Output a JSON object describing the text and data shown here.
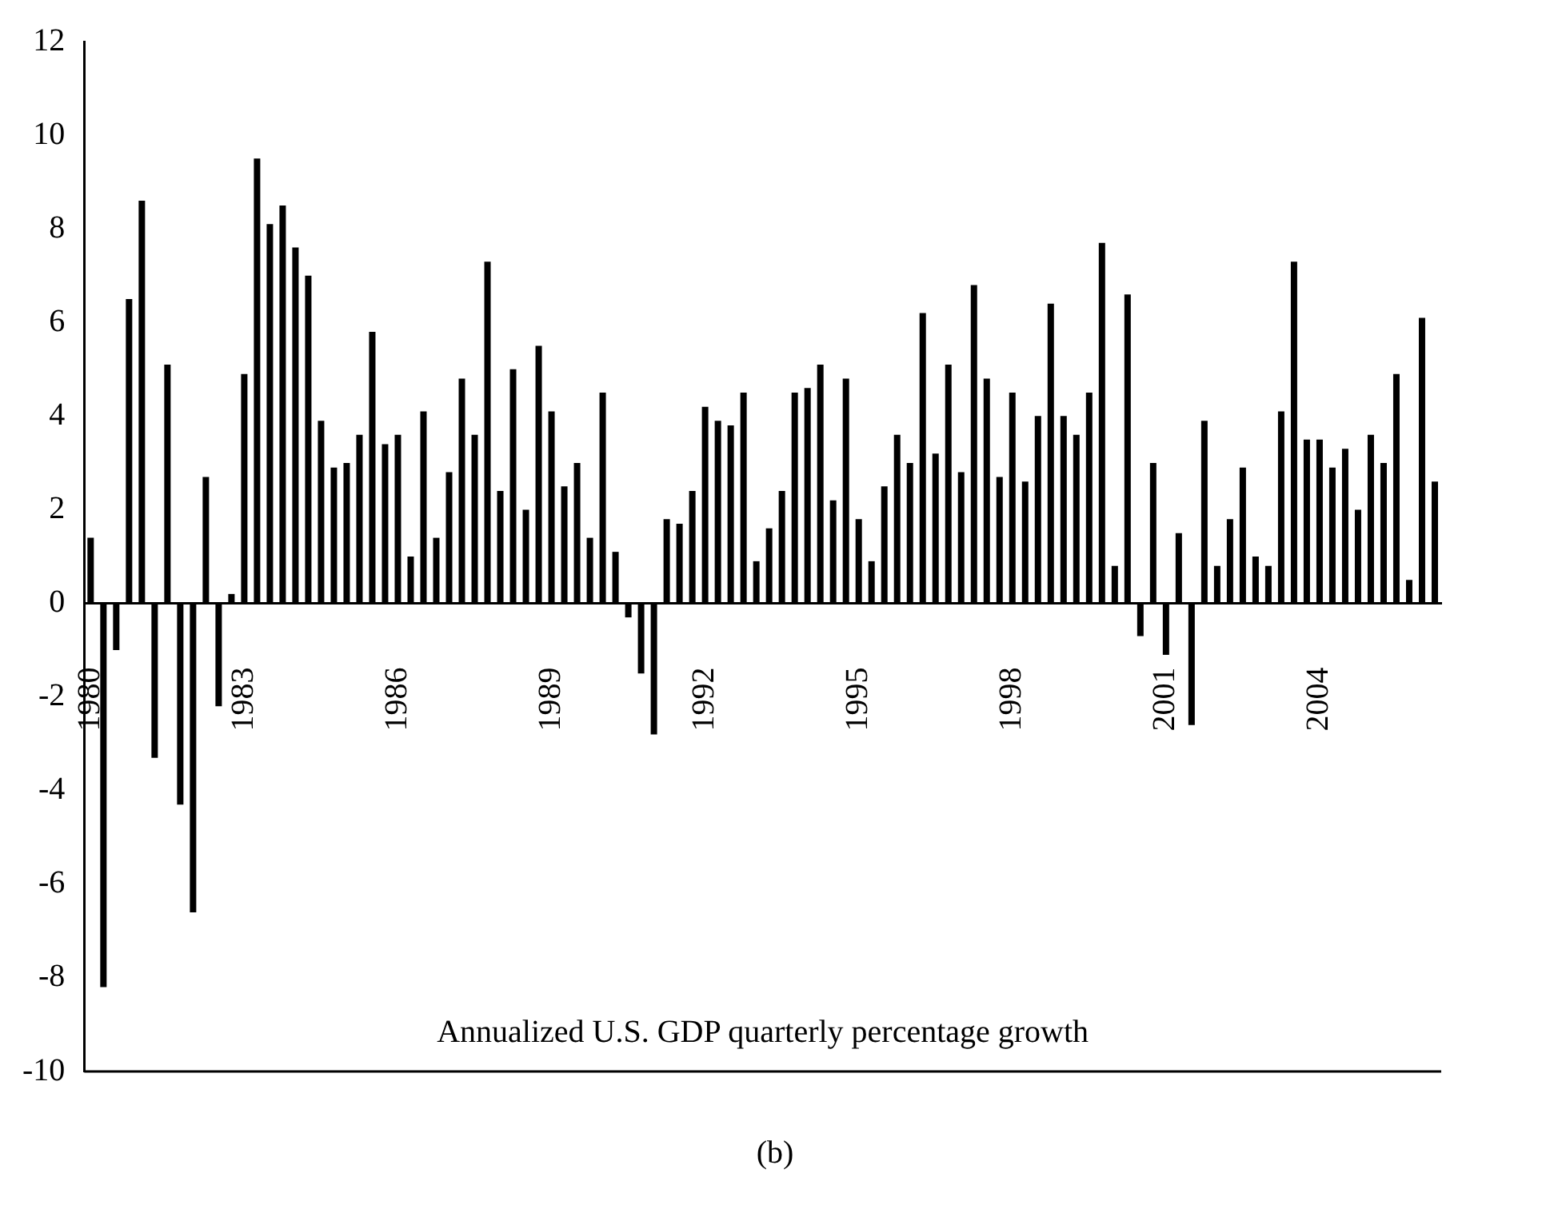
{
  "chart_data": {
    "type": "bar",
    "categories": [
      "1980",
      null,
      null,
      null,
      null,
      null,
      null,
      null,
      null,
      null,
      null,
      null,
      "1983",
      null,
      null,
      null,
      null,
      null,
      null,
      null,
      null,
      null,
      null,
      null,
      "1986",
      null,
      null,
      null,
      null,
      null,
      null,
      null,
      null,
      null,
      null,
      null,
      "1989",
      null,
      null,
      null,
      null,
      null,
      null,
      null,
      null,
      null,
      null,
      null,
      "1992",
      null,
      null,
      null,
      null,
      null,
      null,
      null,
      null,
      null,
      null,
      null,
      "1995",
      null,
      null,
      null,
      null,
      null,
      null,
      null,
      null,
      null,
      null,
      null,
      "1998",
      null,
      null,
      null,
      null,
      null,
      null,
      null,
      null,
      null,
      null,
      null,
      "2001",
      null,
      null,
      null,
      null,
      null,
      null,
      null,
      null,
      null,
      null,
      null,
      "2004",
      null,
      null,
      null,
      null,
      null,
      null,
      null,
      null,
      null
    ],
    "values": [
      1.4,
      -8.2,
      -1.0,
      6.5,
      8.6,
      -3.3,
      5.1,
      -4.3,
      -6.6,
      2.7,
      -2.2,
      0.2,
      4.9,
      9.5,
      8.1,
      8.5,
      7.6,
      7.0,
      3.9,
      2.9,
      3.0,
      3.6,
      5.8,
      3.4,
      3.6,
      1.0,
      4.1,
      1.4,
      2.8,
      4.8,
      3.6,
      7.3,
      2.4,
      5.0,
      2.0,
      5.5,
      4.1,
      2.5,
      3.0,
      1.4,
      4.5,
      1.1,
      -0.3,
      -1.5,
      -2.8,
      1.8,
      1.7,
      2.4,
      4.2,
      3.9,
      3.8,
      4.5,
      0.9,
      1.6,
      2.4,
      4.5,
      4.6,
      5.1,
      2.2,
      4.8,
      1.8,
      0.9,
      2.5,
      3.6,
      3.0,
      6.2,
      3.2,
      5.1,
      2.8,
      6.8,
      4.8,
      2.7,
      4.5,
      2.6,
      4.0,
      6.4,
      4.0,
      3.6,
      4.5,
      7.7,
      0.8,
      6.6,
      -0.7,
      3.0,
      -1.1,
      1.5,
      -2.6,
      3.9,
      0.8,
      1.8,
      2.9,
      1.0,
      0.8,
      4.1,
      7.3,
      3.5,
      3.5,
      2.9,
      3.3,
      2.0,
      3.6,
      3.0,
      4.9,
      0.5,
      6.1,
      2.6
    ],
    "color": "#000000",
    "ylim": [
      -10,
      12
    ],
    "yticks": [
      -10,
      -8,
      -6,
      -4,
      -2,
      0,
      2,
      4,
      6,
      8,
      10,
      12
    ],
    "grid": false,
    "annotations": [
      "Annualized U.S. GDP quarterly percentage growth",
      "(b)"
    ]
  }
}
